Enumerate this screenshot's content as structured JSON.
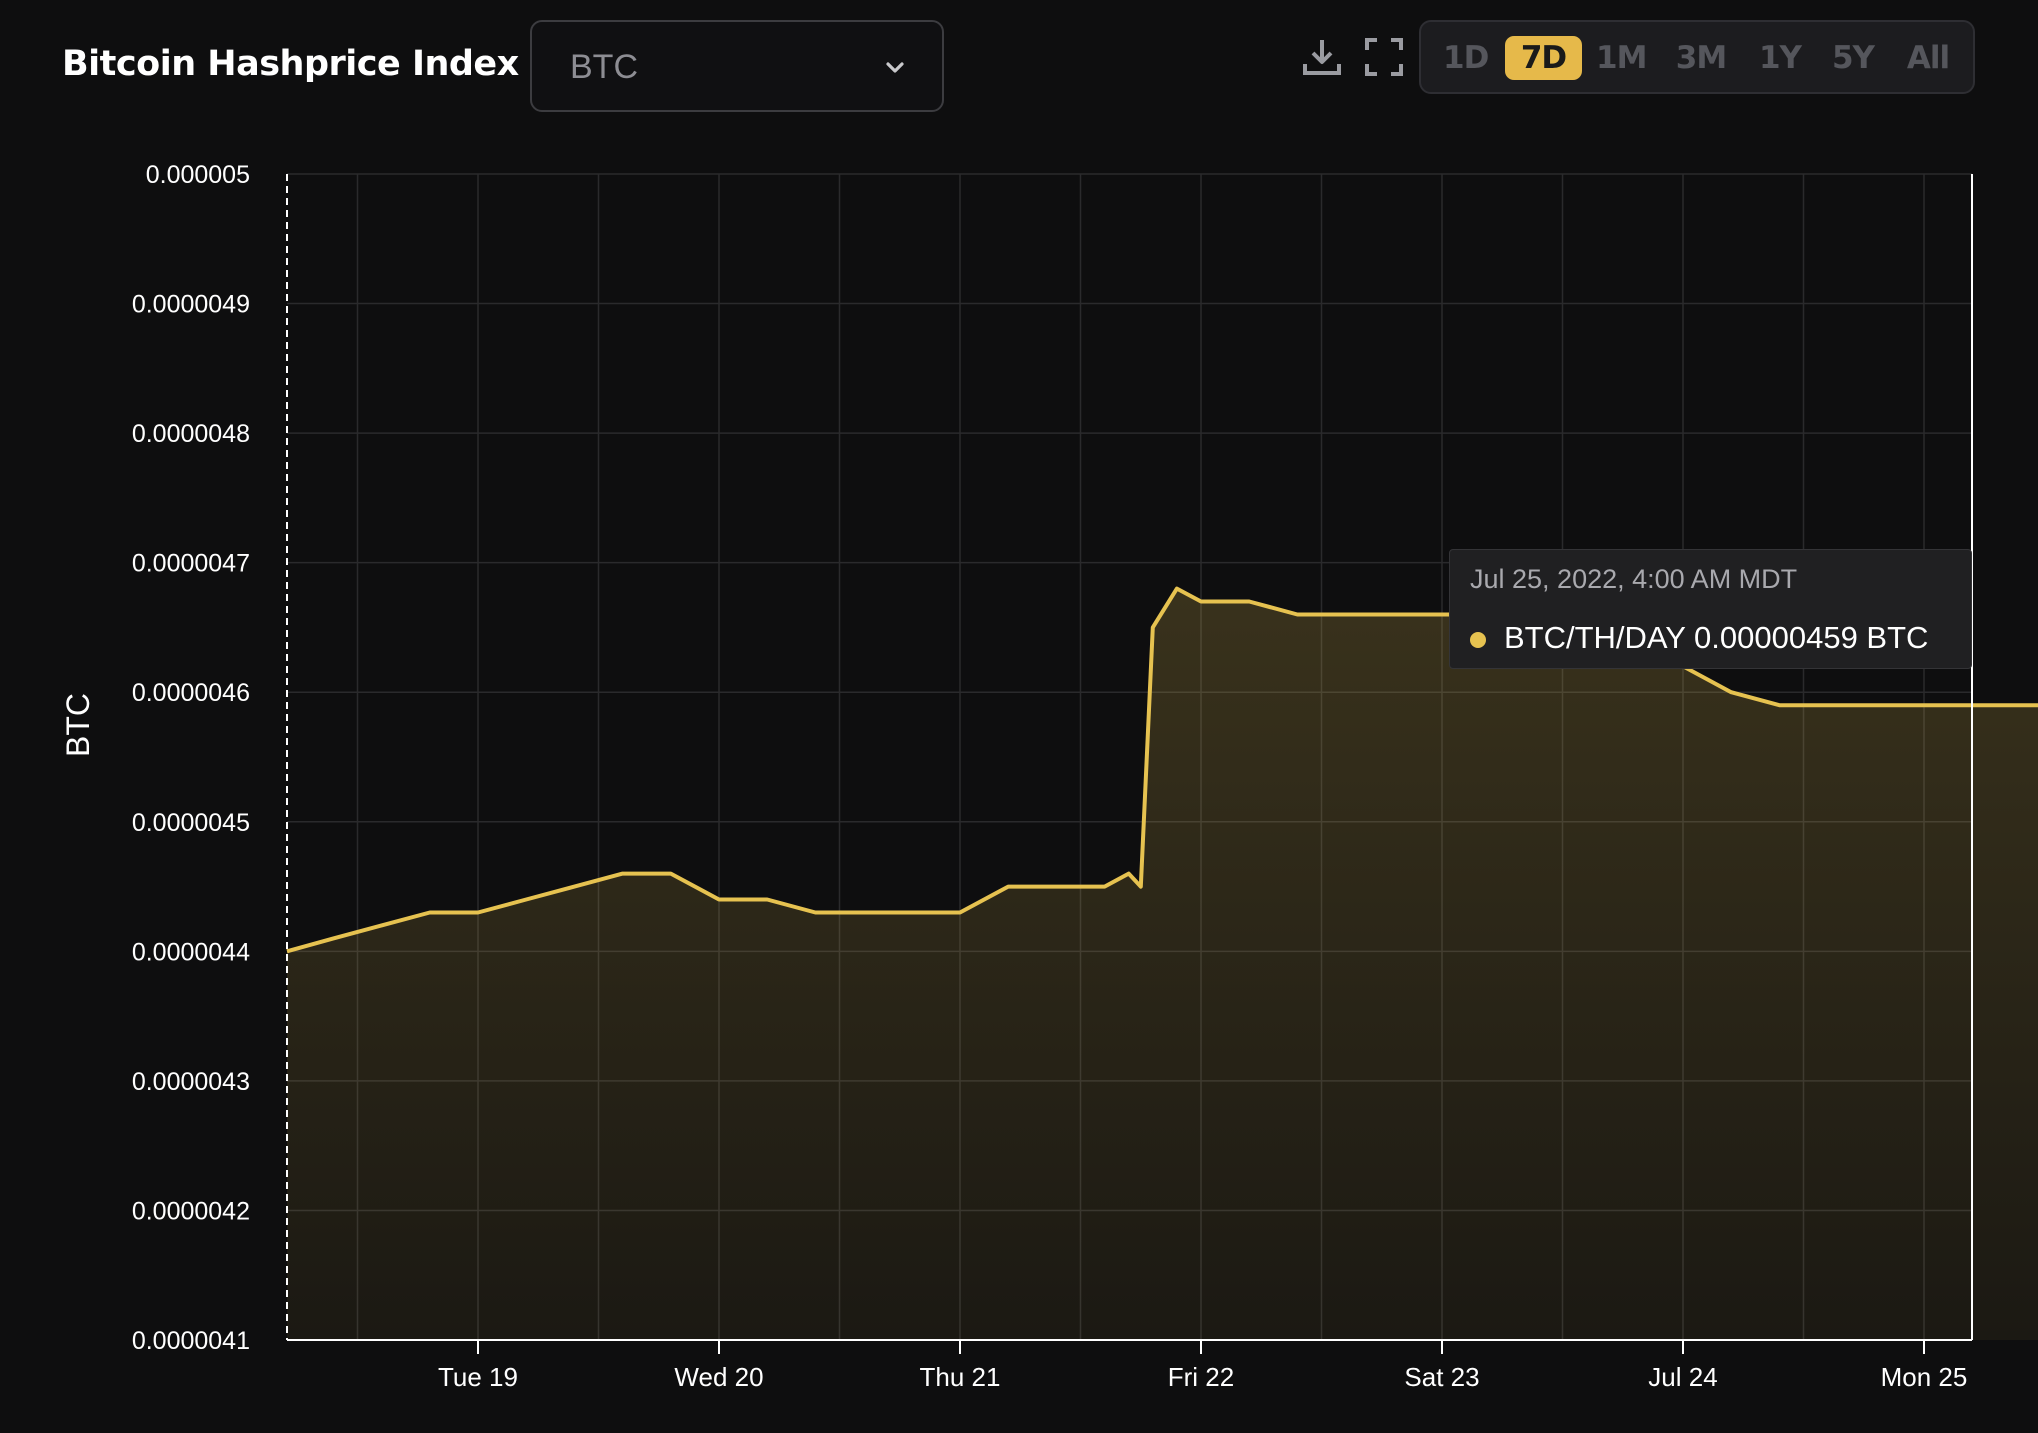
{
  "header": {
    "title": "Bitcoin Hashprice Index",
    "currency_select": {
      "value": "BTC"
    },
    "download_icon": "download-icon",
    "fullscreen_icon": "fullscreen-icon",
    "ranges": [
      "1D",
      "7D",
      "1M",
      "3M",
      "1Y",
      "5Y",
      "All"
    ],
    "active_range": "7D"
  },
  "tooltip": {
    "date": "Jul 25, 2022, 4:00 AM MDT",
    "series_label": "BTC/TH/DAY 0.00000459 BTC"
  },
  "colors": {
    "background": "#0e0e0f",
    "line": "#e6c250",
    "accent": "#e6b94a",
    "grid": "#2a2a2c"
  },
  "chart_data": {
    "type": "area",
    "title": "Bitcoin Hashprice Index",
    "xlabel": "",
    "ylabel": "BTC",
    "ylim": [
      4.1e-06,
      5e-06
    ],
    "y_ticks": [
      "0.000005",
      "0.0000049",
      "0.0000048",
      "0.0000047",
      "0.0000046",
      "0.0000045",
      "0.0000044",
      "0.0000043",
      "0.0000042",
      "0.0000041"
    ],
    "x_ticks": [
      "Tue 19",
      "Wed 20",
      "Thu 21",
      "Fri 22",
      "Sat 23",
      "Jul 24",
      "Mon 25"
    ],
    "grid": true,
    "series": [
      {
        "x": [
          -0.8,
          -0.6,
          -0.4,
          -0.2,
          0,
          0.2,
          0.4,
          0.6,
          0.8,
          1,
          1.2,
          1.4,
          1.6,
          1.8,
          2,
          2.2,
          2.4,
          2.6,
          2.7,
          2.75,
          2.8,
          2.9,
          3,
          3.2,
          3.4,
          3.6,
          3.8,
          4,
          4.2,
          4.4,
          4.6,
          4.8,
          5,
          5.2,
          5.4,
          5.6,
          5.8,
          6,
          6.2,
          6.4,
          6.6,
          6.8,
          6.95
        ],
        "y": [
          4.4e-06,
          4.41e-06,
          4.42e-06,
          4.43e-06,
          4.43e-06,
          4.44e-06,
          4.45e-06,
          4.46e-06,
          4.46e-06,
          4.44e-06,
          4.44e-06,
          4.43e-06,
          4.43e-06,
          4.43e-06,
          4.43e-06,
          4.45e-06,
          4.45e-06,
          4.45e-06,
          4.46e-06,
          4.45e-06,
          4.65e-06,
          4.68e-06,
          4.67e-06,
          4.67e-06,
          4.66e-06,
          4.66e-06,
          4.66e-06,
          4.66e-06,
          4.66e-06,
          4.66e-06,
          4.65e-06,
          4.63e-06,
          4.62e-06,
          4.6e-06,
          4.59e-06,
          4.59e-06,
          4.59e-06,
          4.59e-06,
          4.59e-06,
          4.59e-06,
          4.59e-06,
          4.59e-06,
          4.59e-06
        ]
      }
    ]
  }
}
